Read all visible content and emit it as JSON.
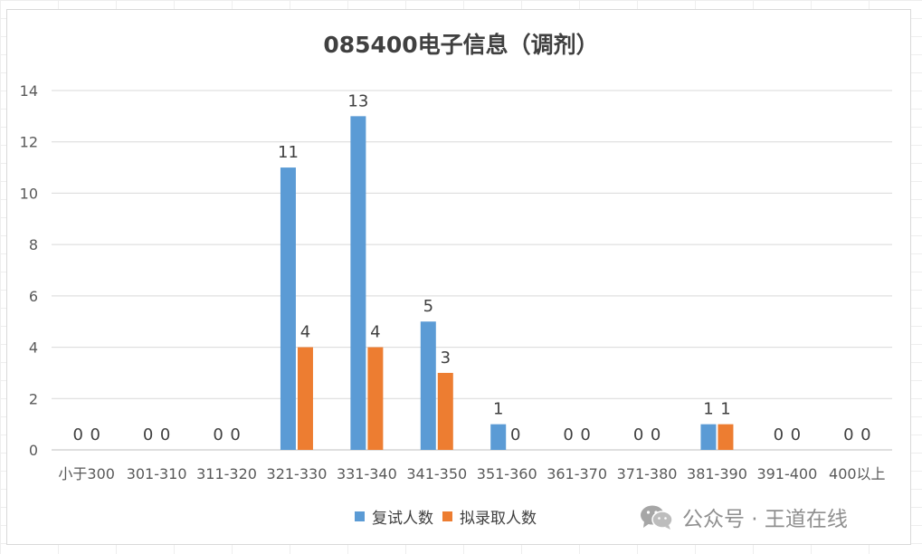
{
  "chart_data": {
    "type": "bar",
    "title": "085400电子信息（调剂）",
    "categories": [
      "小于300",
      "301-310",
      "311-320",
      "321-330",
      "331-340",
      "341-350",
      "351-360",
      "361-370",
      "371-380",
      "381-390",
      "391-400",
      "400以上"
    ],
    "series": [
      {
        "name": "复试人数",
        "color": "#5b9bd5",
        "values": [
          0,
          0,
          0,
          11,
          13,
          5,
          1,
          0,
          0,
          1,
          0,
          0
        ]
      },
      {
        "name": "拟录取人数",
        "color": "#ed7d31",
        "values": [
          0,
          0,
          0,
          4,
          4,
          3,
          0,
          0,
          0,
          1,
          0,
          0
        ]
      }
    ],
    "ylim": [
      0,
      14
    ],
    "yticks": [
      0,
      2,
      4,
      6,
      8,
      10,
      12,
      14
    ],
    "grid": true,
    "legend_position": "bottom",
    "data_labels": true
  },
  "watermark": {
    "icon": "wechat-icon",
    "text": "公众号 · 王道在线"
  }
}
